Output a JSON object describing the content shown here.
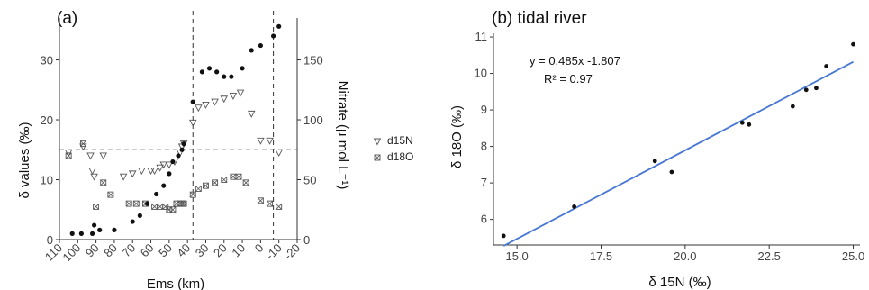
{
  "chart_data": [
    {
      "panel": "(a)",
      "type": "scatter",
      "title": "(a)",
      "xlabel": "Ems (km)",
      "ylabel": "δ values (‰)",
      "y2label": "Nitrate (µ mol L⁻¹)",
      "xlim": [
        110,
        -20
      ],
      "ylim": [
        0,
        37
      ],
      "y2lim": [
        0,
        185
      ],
      "x_ticks": [
        110,
        100,
        90,
        80,
        70,
        60,
        50,
        40,
        30,
        20,
        10,
        0,
        -10,
        -20
      ],
      "y_ticks": [
        0,
        10,
        20,
        30
      ],
      "y2_ticks": [
        0,
        50,
        100,
        150
      ],
      "reference_lines": {
        "vertical_x": [
          37,
          -7
        ],
        "horizontal_y": [
          15
        ]
      },
      "grid": false,
      "legend_position": "right",
      "series": [
        {
          "name": "d15N",
          "axis": "left",
          "marker": "triangle-down",
          "x": [
            105,
            97,
            93,
            92,
            91,
            86,
            75,
            70,
            65,
            60,
            58,
            55,
            53,
            50,
            47,
            44,
            43,
            42,
            37,
            34,
            30,
            25,
            20,
            15,
            11,
            5,
            0,
            -5,
            -10
          ],
          "y": [
            14.5,
            15.5,
            14,
            11.5,
            10.5,
            14,
            10.5,
            11,
            11.5,
            11.5,
            11.5,
            12,
            12.5,
            12.5,
            13,
            14.5,
            15.5,
            16,
            19.5,
            22,
            22.5,
            23,
            23.5,
            24,
            24.5,
            21,
            16.5,
            16.5,
            14.5
          ]
        },
        {
          "name": "d18O",
          "axis": "left",
          "marker": "square-x",
          "x": [
            105,
            97,
            90,
            86,
            82,
            72,
            68,
            63,
            58,
            55,
            52,
            50,
            48,
            46,
            44,
            43,
            42,
            37,
            34,
            30,
            25,
            20,
            15,
            12,
            8,
            0,
            -5,
            -10
          ],
          "y": [
            14,
            16,
            5.5,
            9.5,
            7.5,
            6,
            6,
            6,
            5.5,
            5.5,
            5.5,
            5,
            5,
            6,
            6,
            6,
            6,
            7.5,
            8.5,
            9,
            9.5,
            10,
            10.5,
            10.5,
            9.5,
            6.5,
            6,
            5.5
          ]
        },
        {
          "name": "Nitrate",
          "axis": "right",
          "marker": "circle-filled",
          "x": [
            103,
            98,
            92,
            91,
            88,
            80,
            70,
            66,
            62,
            57,
            53,
            50,
            48,
            45,
            43,
            42,
            37,
            32,
            28,
            24,
            20,
            16,
            10,
            5,
            0,
            -7,
            -10
          ],
          "y": [
            5,
            5,
            5,
            12,
            8,
            8,
            15,
            20,
            30,
            38,
            45,
            55,
            65,
            70,
            75,
            80,
            115,
            140,
            143,
            140,
            136,
            136,
            143,
            158,
            162,
            170,
            178
          ]
        }
      ]
    },
    {
      "panel": "(b)",
      "type": "scatter",
      "title": "(b) tidal river",
      "xlabel": "δ 15N (‰)",
      "ylabel": "δ 18O (‰)",
      "xlim": [
        14.3,
        25.2
      ],
      "ylim": [
        5.3,
        11.1
      ],
      "x_ticks": [
        "15.0",
        "17.5",
        "20.0",
        "22.5",
        "25.0"
      ],
      "y_ticks": [
        "6",
        "7",
        "8",
        "9",
        "10",
        "11"
      ],
      "grid": false,
      "regression": {
        "equation": "y = 0.485x -1.807",
        "r2": "R² = 0.97",
        "slope": 0.485,
        "intercept": -1.807,
        "color": "#4677d4"
      },
      "points": {
        "x": [
          14.6,
          16.7,
          19.1,
          19.6,
          21.7,
          21.9,
          23.2,
          23.6,
          23.9,
          24.2,
          25.0
        ],
        "y": [
          5.55,
          6.35,
          7.6,
          7.3,
          8.65,
          8.6,
          9.1,
          9.55,
          9.6,
          10.2,
          10.8
        ]
      }
    }
  ]
}
